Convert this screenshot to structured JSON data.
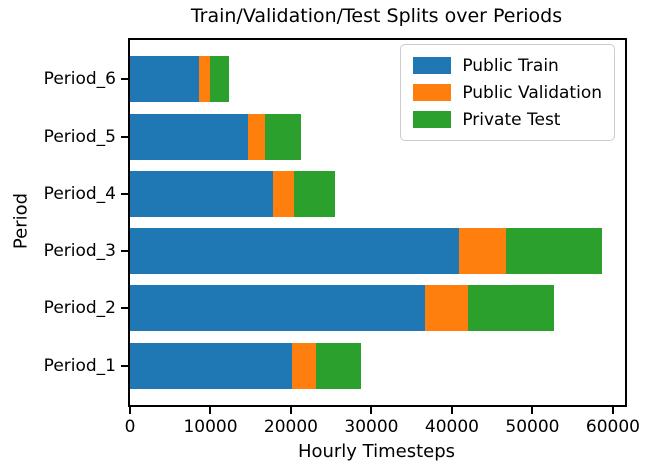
{
  "chart_data": {
    "type": "bar",
    "orientation": "horizontal",
    "stacked": true,
    "title": "Train/Validation/Test Splits over Periods",
    "xlabel": "Hourly Timesteps",
    "ylabel": "Period",
    "categories": [
      "Period_1",
      "Period_2",
      "Period_3",
      "Period_4",
      "Period_5",
      "Period_6"
    ],
    "category_order_note": "plotted bottom-to-top: Period_1 at bottom, Period_6 at top",
    "series": [
      {
        "name": "Public Train",
        "color": "#1f77b4",
        "values": [
          20180,
          36700,
          40910,
          17790,
          14680,
          8600
        ]
      },
      {
        "name": "Public Validation",
        "color": "#ff7f0e",
        "values": [
          2900,
          5320,
          5770,
          2610,
          2070,
          1280
        ]
      },
      {
        "name": "Private Test",
        "color": "#2ca02c",
        "values": [
          5670,
          10640,
          11980,
          5130,
          4470,
          2480
        ]
      }
    ],
    "xlim": [
      0,
      61500
    ],
    "ylim": [
      -0.69,
      5.69
    ],
    "xticks": [
      0,
      10000,
      20000,
      30000,
      40000,
      50000,
      60000
    ],
    "xtick_labels": [
      "0",
      "10000",
      "20000",
      "30000",
      "40000",
      "50000",
      "60000"
    ],
    "bar_height_frac": 0.8,
    "grid": false,
    "legend": {
      "position": "upper right",
      "entries": [
        "Public Train",
        "Public Validation",
        "Private Test"
      ]
    }
  }
}
